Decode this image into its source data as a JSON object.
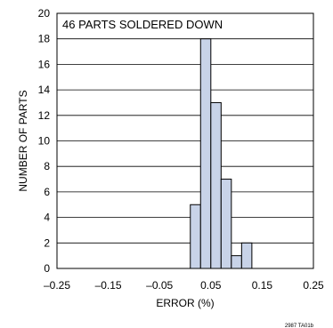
{
  "chart_data": {
    "type": "bar",
    "annotation": "46 PARTS SOLDERED DOWN",
    "xlabel": "ERROR (%)",
    "ylabel": "NUMBER OF PARTS",
    "xlim": [
      -0.25,
      0.25
    ],
    "ylim": [
      0,
      20
    ],
    "x_ticks": [
      "–0.25",
      "–0.15",
      "–0.05",
      "0.05",
      "0.15",
      "0.25"
    ],
    "x_tick_values": [
      -0.25,
      -0.15,
      -0.05,
      0.05,
      0.15,
      0.25
    ],
    "y_ticks": [
      0,
      2,
      4,
      6,
      8,
      10,
      12,
      14,
      16,
      18,
      20
    ],
    "grid": "horizontal",
    "bin_width": 0.02,
    "bins": [
      {
        "start": 0.01,
        "value": 5
      },
      {
        "start": 0.03,
        "value": 18
      },
      {
        "start": 0.05,
        "value": 13
      },
      {
        "start": 0.07,
        "value": 7
      },
      {
        "start": 0.09,
        "value": 1
      },
      {
        "start": 0.11,
        "value": 2
      }
    ],
    "bar_color": "#c8d3e8",
    "figure_id": "2987 TA01b"
  }
}
